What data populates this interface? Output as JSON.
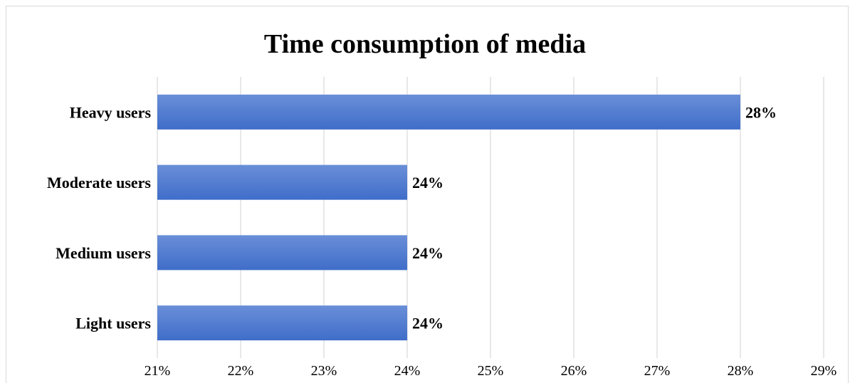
{
  "chart_data": {
    "type": "bar",
    "orientation": "horizontal",
    "title": "Time consumption of media",
    "categories": [
      "Heavy users",
      "Moderate users",
      "Medium users",
      "Light users"
    ],
    "values": [
      28,
      24,
      24,
      24
    ],
    "data_labels": [
      "28%",
      "24%",
      "24%",
      "24%"
    ],
    "xlim": [
      21,
      29
    ],
    "x_ticks": [
      "21%",
      "22%",
      "23%",
      "24%",
      "25%",
      "26%",
      "27%",
      "28%",
      "29%"
    ],
    "grid": "vertical",
    "legend": "none",
    "bar_color": "#4a78d0"
  }
}
